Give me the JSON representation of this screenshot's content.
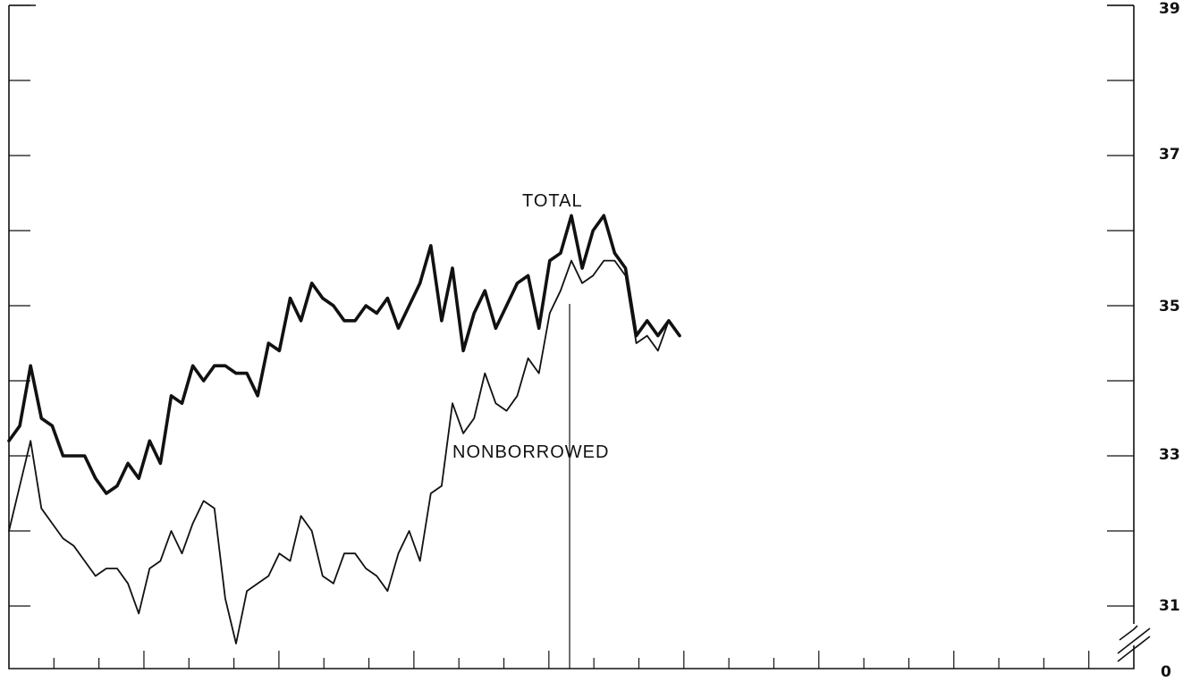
{
  "chart_data": {
    "type": "line",
    "title": "",
    "xlabel": "",
    "ylabel": "",
    "ylim": [
      31,
      39
    ],
    "y_axis_break": true,
    "y_tick_labels": [
      "39",
      "37",
      "35",
      "33",
      "31",
      "0"
    ],
    "grid": false,
    "x_major_ticks": 25,
    "series": [
      {
        "name": "TOTAL",
        "values": [
          33.2,
          33.4,
          34.2,
          33.5,
          33.4,
          33.0,
          33.0,
          33.0,
          32.7,
          32.5,
          32.6,
          32.9,
          32.7,
          33.2,
          32.9,
          33.8,
          33.7,
          34.2,
          34.0,
          34.2,
          34.2,
          34.1,
          34.1,
          33.8,
          34.5,
          34.4,
          35.1,
          34.8,
          35.3,
          35.1,
          35.0,
          34.8,
          34.8,
          35.0,
          34.9,
          35.1,
          34.7,
          35.0,
          35.3,
          35.8,
          34.8,
          35.5,
          34.4,
          34.9,
          35.2,
          34.7,
          35.0,
          35.3,
          35.4,
          34.7,
          35.6,
          35.7,
          36.2,
          35.5,
          36.0,
          36.2,
          35.7,
          35.5,
          34.6,
          34.8,
          34.6,
          34.8,
          34.6
        ]
      },
      {
        "name": "NONBORROWED",
        "values": [
          32.0,
          32.6,
          33.2,
          32.3,
          32.1,
          31.9,
          31.8,
          31.6,
          31.4,
          31.5,
          31.5,
          31.3,
          30.9,
          31.5,
          31.6,
          32.0,
          31.7,
          32.1,
          32.4,
          32.3,
          31.1,
          30.5,
          31.2,
          31.3,
          31.4,
          31.7,
          31.6,
          32.2,
          32.0,
          31.4,
          31.3,
          31.7,
          31.7,
          31.5,
          31.4,
          31.2,
          31.7,
          32.0,
          31.6,
          32.5,
          32.6,
          33.7,
          33.3,
          33.5,
          34.1,
          33.7,
          33.6,
          33.8,
          34.3,
          34.1,
          34.9,
          35.2,
          35.6,
          35.3,
          35.4,
          35.6,
          35.6,
          35.4,
          34.5,
          34.6,
          34.4,
          34.8,
          34.6
        ]
      }
    ]
  }
}
